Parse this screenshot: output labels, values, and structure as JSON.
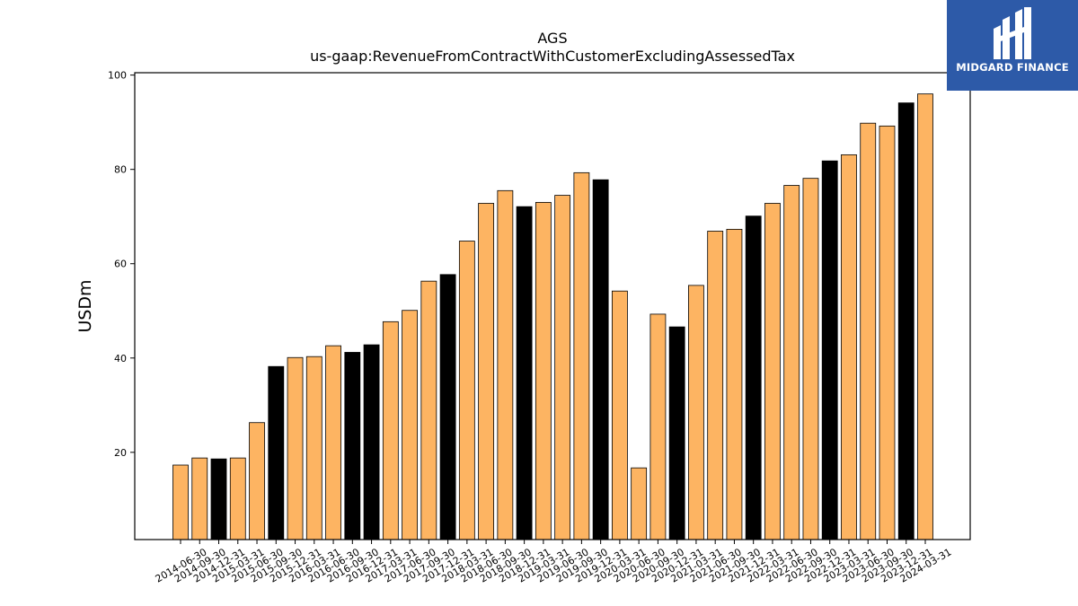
{
  "brand": {
    "name": "MIDGARD FINANCE",
    "bg_color": "#2d5aa8"
  },
  "colors": {
    "bar_default": "#fdb462",
    "bar_highlight": "#000000",
    "bar_edge": "#000000"
  },
  "chart_data": {
    "type": "bar",
    "title": "AGS",
    "subtitle": "us-gaap:RevenueFromContractWithCustomerExcludingAssessedTax",
    "xlabel": "",
    "ylabel": "USDm",
    "ylim": [
      1.5,
      100.5
    ],
    "yticks": [
      20,
      40,
      60,
      80,
      100
    ],
    "grid": false,
    "categories": [
      "2014-06-30",
      "2014-09-30",
      "2014-12-31",
      "2015-03-31",
      "2015-06-30",
      "2015-09-30",
      "2015-12-31",
      "2016-03-31",
      "2016-06-30",
      "2016-09-30",
      "2016-12-31",
      "2017-03-31",
      "2017-06-30",
      "2017-09-30",
      "2017-12-31",
      "2018-03-31",
      "2018-06-30",
      "2018-09-30",
      "2018-12-31",
      "2019-03-31",
      "2019-06-30",
      "2019-09-30",
      "2019-12-31",
      "2020-03-31",
      "2020-06-30",
      "2020-09-30",
      "2020-12-31",
      "2021-03-31",
      "2021-06-30",
      "2021-09-30",
      "2021-12-31",
      "2022-03-31",
      "2022-06-30",
      "2022-09-30",
      "2022-12-31",
      "2023-03-31",
      "2023-06-30",
      "2023-09-30",
      "2023-12-31",
      "2024-03-31"
    ],
    "values": [
      17.3,
      18.8,
      18.6,
      18.8,
      26.3,
      38.2,
      40.1,
      40.3,
      42.6,
      41.2,
      42.8,
      47.7,
      50.1,
      56.3,
      57.7,
      64.8,
      72.8,
      75.5,
      72.1,
      73.0,
      74.5,
      79.3,
      77.8,
      54.2,
      16.7,
      49.3,
      46.6,
      55.4,
      66.9,
      67.3,
      70.1,
      72.8,
      76.6,
      78.1,
      81.8,
      83.1,
      89.8,
      89.2,
      94.1,
      96.0
    ],
    "highlight": [
      false,
      false,
      true,
      false,
      false,
      true,
      false,
      false,
      false,
      true,
      true,
      false,
      false,
      false,
      true,
      false,
      false,
      false,
      true,
      false,
      false,
      false,
      true,
      false,
      false,
      false,
      true,
      false,
      false,
      false,
      true,
      false,
      false,
      false,
      true,
      false,
      false,
      false,
      true,
      false
    ]
  }
}
